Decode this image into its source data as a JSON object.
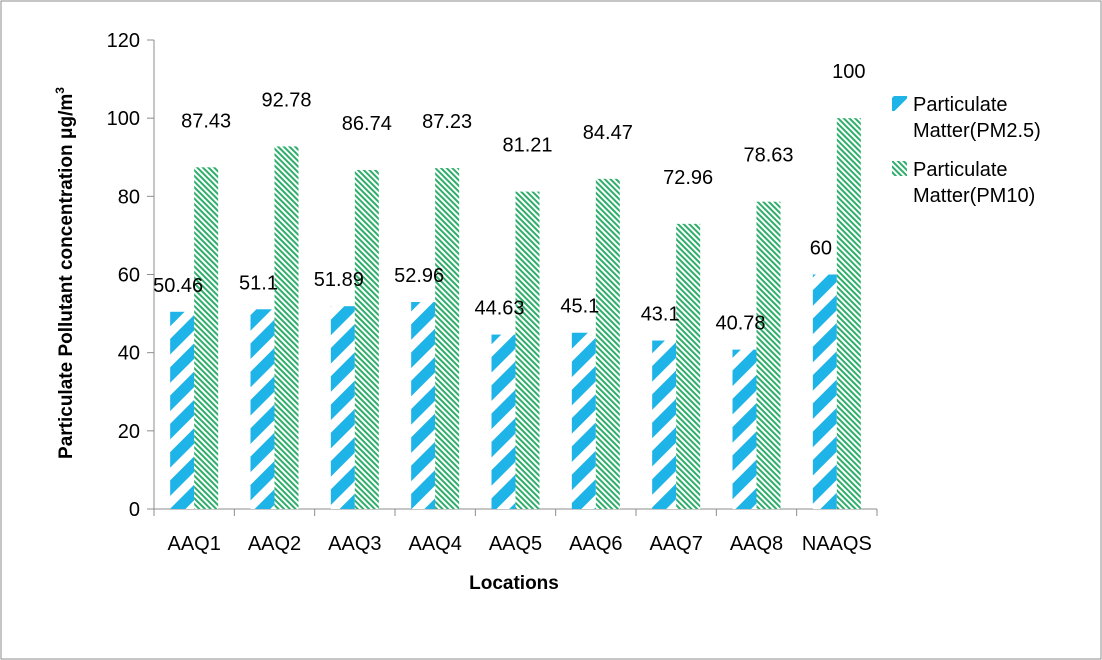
{
  "chart_data": {
    "type": "bar",
    "categories": [
      "AAQ1",
      "AAQ2",
      "AAQ3",
      "AAQ4",
      "AAQ5",
      "AAQ6",
      "AAQ7",
      "AAQ8",
      "NAAQS"
    ],
    "series": [
      {
        "name_lines": [
          "Particulate",
          "Matter(PM2.5)"
        ],
        "values": [
          50.46,
          51.1,
          51.89,
          52.96,
          44.63,
          45.1,
          43.1,
          40.78,
          60
        ],
        "value_labels": [
          "50.46",
          "51.1",
          "51.89",
          "52.96",
          "44.63",
          "45.1",
          "43.1",
          "40.78",
          "60"
        ],
        "color": "#1fb4e8",
        "pattern": "wide-diagonal-stripes"
      },
      {
        "name_lines": [
          "Particulate",
          "Matter(PM10)"
        ],
        "values": [
          87.43,
          92.78,
          86.74,
          87.23,
          81.21,
          84.47,
          72.96,
          78.63,
          100
        ],
        "value_labels": [
          "87.43",
          "92.78",
          "86.74",
          "87.23",
          "81.21",
          "84.47",
          "72.96",
          "78.63",
          "100"
        ],
        "color": "#2eae6a",
        "pattern": "fine-diagonal-stripes"
      }
    ],
    "ylabel": "Particulate Pollutant concentration μg/m",
    "ylabel_superscript": "3",
    "xlabel": "Locations",
    "ylim": [
      0,
      120
    ],
    "yticks": [
      0,
      20,
      40,
      60,
      80,
      100,
      120
    ],
    "ytick_labels": [
      "0",
      "20",
      "40",
      "60",
      "80",
      "100",
      "120"
    ],
    "grid": false,
    "legend_position": "right"
  }
}
